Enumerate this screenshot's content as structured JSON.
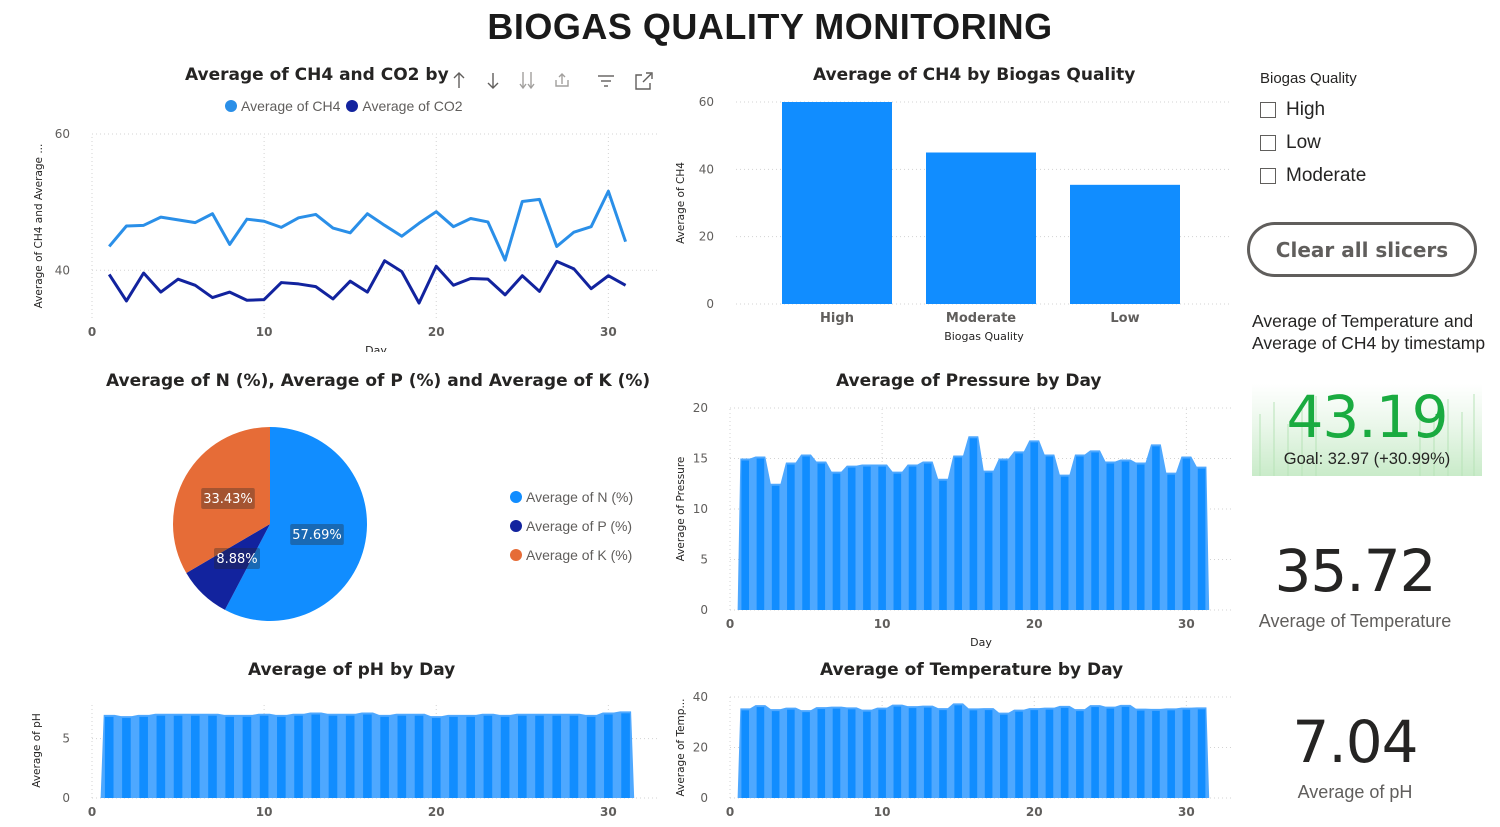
{
  "page_title": "BIOGAS QUALITY MONITORING",
  "colors": {
    "ch4": "#2a8fe8",
    "co2": "#12239e",
    "bar": "#118dff",
    "bar_light": "#4ea8ff",
    "n": "#118dff",
    "p": "#12239e",
    "k": "#e66c37",
    "kpi_green": "#1aab40"
  },
  "visual_header_icons": [
    "sort-ascending-icon",
    "sort-descending-icon",
    "expand-all-icon",
    "drill-down-icon",
    "filter-icon",
    "focus-mode-icon"
  ],
  "line_chart": {
    "title": "Average of CH4 and CO2 by",
    "legend": [
      "Average of CH4",
      "Average of CO2"
    ],
    "xlabel": "Day",
    "ylabel": "Average of CH4 and Average ...",
    "x_ticks": [
      "0",
      "10",
      "20",
      "30"
    ],
    "y_ticks": [
      "40",
      "60"
    ]
  },
  "bar_quality": {
    "title": "Average of CH4 by Biogas Quality",
    "xlabel": "Biogas Quality",
    "ylabel": "Average of CH4",
    "y_ticks": [
      "0",
      "20",
      "40",
      "60"
    ]
  },
  "pie": {
    "title": "Average of N (%), Average of P (%) and Average of K (%)",
    "labels": [
      "57.69%",
      "8.88%",
      "33.43%"
    ],
    "legend": [
      "Average of N (%)",
      "Average of P (%)",
      "Average of K (%)"
    ]
  },
  "pressure": {
    "title": "Average of Pressure by Day",
    "xlabel": "Day",
    "ylabel": "Average of Pressure",
    "x_ticks": [
      "0",
      "10",
      "20",
      "30"
    ],
    "y_ticks": [
      "0",
      "5",
      "10",
      "15",
      "20"
    ]
  },
  "ph": {
    "title": "Average of pH by Day",
    "ylabel": "Average of pH",
    "x_ticks": [
      "0",
      "10",
      "20",
      "30"
    ],
    "y_ticks": [
      "0",
      "5"
    ]
  },
  "temp": {
    "title": "Average of Temperature by Day",
    "ylabel": "Average of Temp...",
    "x_ticks": [
      "0",
      "10",
      "20",
      "30"
    ],
    "y_ticks": [
      "0",
      "20",
      "40"
    ]
  },
  "slicer": {
    "title": "Biogas Quality",
    "items": [
      "High",
      "Low",
      "Moderate"
    ]
  },
  "clear_button": "Clear all slicers",
  "kpi": {
    "title": "Average of Temperature and Average of CH4 by timestamp",
    "value": "43.19",
    "goal": "Goal: 32.97 (+30.99%)",
    "check": "✓"
  },
  "card_temp": {
    "value": "35.72",
    "label": "Average of Temperature"
  },
  "card_ph": {
    "value": "7.04",
    "label": "Average of pH"
  },
  "chart_data": [
    {
      "type": "line",
      "title": "Average of CH4 and CO2 by",
      "xlabel": "Day",
      "ylabel": "Average of CH4 and Average ...",
      "x": [
        1,
        2,
        3,
        4,
        5,
        6,
        7,
        8,
        9,
        10,
        11,
        12,
        13,
        14,
        15,
        16,
        17,
        18,
        19,
        20,
        21,
        22,
        23,
        24,
        25,
        26,
        27,
        28,
        29,
        30,
        31
      ],
      "series": [
        {
          "name": "Average of CH4",
          "values": [
            43.5,
            46.5,
            46.6,
            47.8,
            47.4,
            47,
            48.3,
            43.8,
            47.5,
            47.2,
            46.3,
            47.7,
            48.2,
            46.2,
            45.5,
            48.3,
            46.6,
            45,
            46.9,
            48.6,
            46.4,
            47.6,
            47.1,
            41.5,
            50.1,
            50.4,
            43.5,
            45.6,
            46.4,
            51.6,
            44.2
          ]
        },
        {
          "name": "Average of CO2",
          "values": [
            39.4,
            35.5,
            39.6,
            36.8,
            38.7,
            37.8,
            36,
            36.8,
            35.6,
            35.7,
            38.2,
            38,
            37.6,
            35.8,
            38.4,
            36.8,
            41.4,
            39.8,
            35.2,
            40.6,
            37.8,
            38.8,
            38.7,
            36.4,
            39.2,
            36.9,
            41.3,
            40.2,
            37.3,
            39.2,
            37.8
          ]
        }
      ],
      "xlim": [
        0,
        33
      ],
      "ylim": [
        33,
        60
      ],
      "legend": "top-center"
    },
    {
      "type": "bar",
      "title": "Average of CH4 by Biogas Quality",
      "xlabel": "Biogas Quality",
      "ylabel": "Average of CH4",
      "categories": [
        "High",
        "Moderate",
        "Low"
      ],
      "values": [
        60,
        45,
        35.4
      ],
      "ylim": [
        0,
        60
      ]
    },
    {
      "type": "pie",
      "title": "Average of N (%), Average of P (%) and Average of K (%)",
      "categories": [
        "Average of N (%)",
        "Average of P (%)",
        "Average of K (%)"
      ],
      "values": [
        57.69,
        8.88,
        33.43
      ],
      "legend": "right"
    },
    {
      "type": "area",
      "title": "Average of Pressure by Day",
      "xlabel": "Day",
      "ylabel": "Average of Pressure",
      "x": [
        1,
        2,
        3,
        4,
        5,
        6,
        7,
        8,
        9,
        10,
        11,
        12,
        13,
        14,
        15,
        16,
        17,
        18,
        19,
        20,
        21,
        22,
        23,
        24,
        25,
        26,
        27,
        28,
        29,
        30,
        31
      ],
      "values": [
        15,
        15.2,
        12.5,
        14.6,
        15.4,
        14.7,
        13.7,
        14.3,
        14.4,
        14.4,
        13.7,
        14.4,
        14.7,
        13,
        15.3,
        17.2,
        13.8,
        15,
        15.7,
        16.8,
        15.4,
        13.4,
        15.4,
        15.8,
        14.7,
        14.9,
        14.6,
        16.4,
        13.6,
        15.2,
        14.2
      ],
      "xlim": [
        0,
        33
      ],
      "ylim": [
        0,
        20
      ]
    },
    {
      "type": "area",
      "title": "Average of pH by Day",
      "ylabel": "Average of pH",
      "x": [
        1,
        2,
        3,
        4,
        5,
        6,
        7,
        8,
        9,
        10,
        11,
        12,
        13,
        14,
        15,
        16,
        17,
        18,
        19,
        20,
        21,
        22,
        23,
        24,
        25,
        26,
        27,
        28,
        29,
        30,
        31
      ],
      "values": [
        7,
        6.9,
        7,
        7.1,
        7.1,
        7.1,
        7.1,
        7,
        7,
        7.1,
        7,
        7.1,
        7.2,
        7.1,
        7.1,
        7.2,
        7,
        7.1,
        7.1,
        6.9,
        7,
        7,
        7.1,
        7,
        7.1,
        7.1,
        7.1,
        7.1,
        7,
        7.2,
        7.3
      ],
      "xlim": [
        0,
        33
      ],
      "ylim": [
        0,
        8
      ]
    },
    {
      "type": "area",
      "title": "Average of Temperature by Day",
      "ylabel": "Average of Temp...",
      "x": [
        1,
        2,
        3,
        4,
        5,
        6,
        7,
        8,
        9,
        10,
        11,
        12,
        13,
        14,
        15,
        16,
        17,
        18,
        19,
        20,
        21,
        22,
        23,
        24,
        25,
        26,
        27,
        28,
        29,
        30,
        31
      ],
      "values": [
        35.5,
        36.8,
        35.2,
        35.8,
        34.8,
        36,
        36.2,
        35.9,
        35,
        35.8,
        37,
        36.4,
        36.6,
        35.6,
        37.5,
        35.5,
        35.6,
        33.8,
        35,
        35.6,
        35.8,
        36.5,
        35.2,
        36.8,
        36.2,
        36.9,
        35.4,
        35.3,
        35.5,
        35.8,
        35.9
      ],
      "xlim": [
        0,
        33
      ],
      "ylim": [
        0,
        40
      ]
    }
  ]
}
